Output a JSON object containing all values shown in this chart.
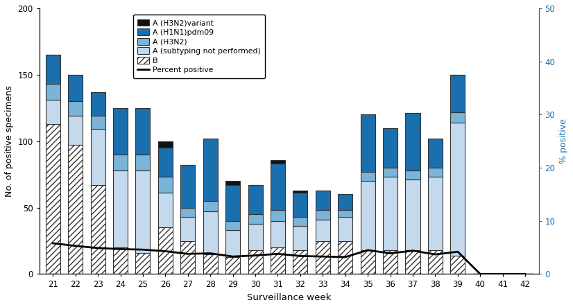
{
  "weeks": [
    21,
    22,
    23,
    24,
    25,
    26,
    27,
    28,
    29,
    30,
    31,
    32,
    33,
    34,
    35,
    36,
    37,
    38,
    39,
    40,
    41,
    42
  ],
  "A_H3N2_variant": [
    0,
    0,
    0,
    0,
    0,
    5,
    0,
    0,
    3,
    0,
    3,
    2,
    0,
    0,
    0,
    0,
    0,
    0,
    0,
    0,
    0,
    0
  ],
  "A_H1N1_pdm09": [
    22,
    20,
    18,
    35,
    35,
    22,
    32,
    47,
    27,
    22,
    35,
    18,
    15,
    12,
    43,
    30,
    43,
    22,
    28,
    0,
    0,
    0
  ],
  "A_H3N2": [
    12,
    11,
    10,
    12,
    12,
    12,
    7,
    8,
    7,
    7,
    8,
    7,
    7,
    5,
    7,
    7,
    7,
    7,
    8,
    0,
    0,
    0
  ],
  "A_subtyping": [
    18,
    22,
    42,
    58,
    62,
    26,
    18,
    32,
    20,
    20,
    20,
    18,
    16,
    18,
    52,
    55,
    53,
    55,
    100,
    0,
    0,
    0
  ],
  "B": [
    113,
    97,
    67,
    20,
    16,
    35,
    25,
    15,
    13,
    18,
    20,
    18,
    25,
    25,
    18,
    18,
    18,
    18,
    14,
    0,
    0,
    0
  ],
  "percent_positive": [
    5.8,
    5.3,
    4.9,
    4.7,
    4.6,
    4.3,
    3.8,
    3.9,
    3.3,
    3.5,
    3.8,
    3.4,
    3.3,
    3.2,
    4.5,
    3.9,
    4.4,
    3.7,
    4.2,
    0,
    0,
    0
  ],
  "ylim_left": [
    0,
    200
  ],
  "ylim_right": [
    0,
    50
  ],
  "color_variant": "#111111",
  "color_H1N1": "#1a6faf",
  "color_H3N2": "#7ab4d8",
  "color_subtyping": "#c5d9ec",
  "xlabel": "Surveillance week",
  "ylabel_left": "No. of positive specimens",
  "ylabel_right": "% positive",
  "legend_labels": [
    "A (H3N2)variant",
    "A (H1N1)pdm09",
    "A (H3N2)",
    "A (subtyping not performed)",
    "B",
    "Percent positive"
  ]
}
